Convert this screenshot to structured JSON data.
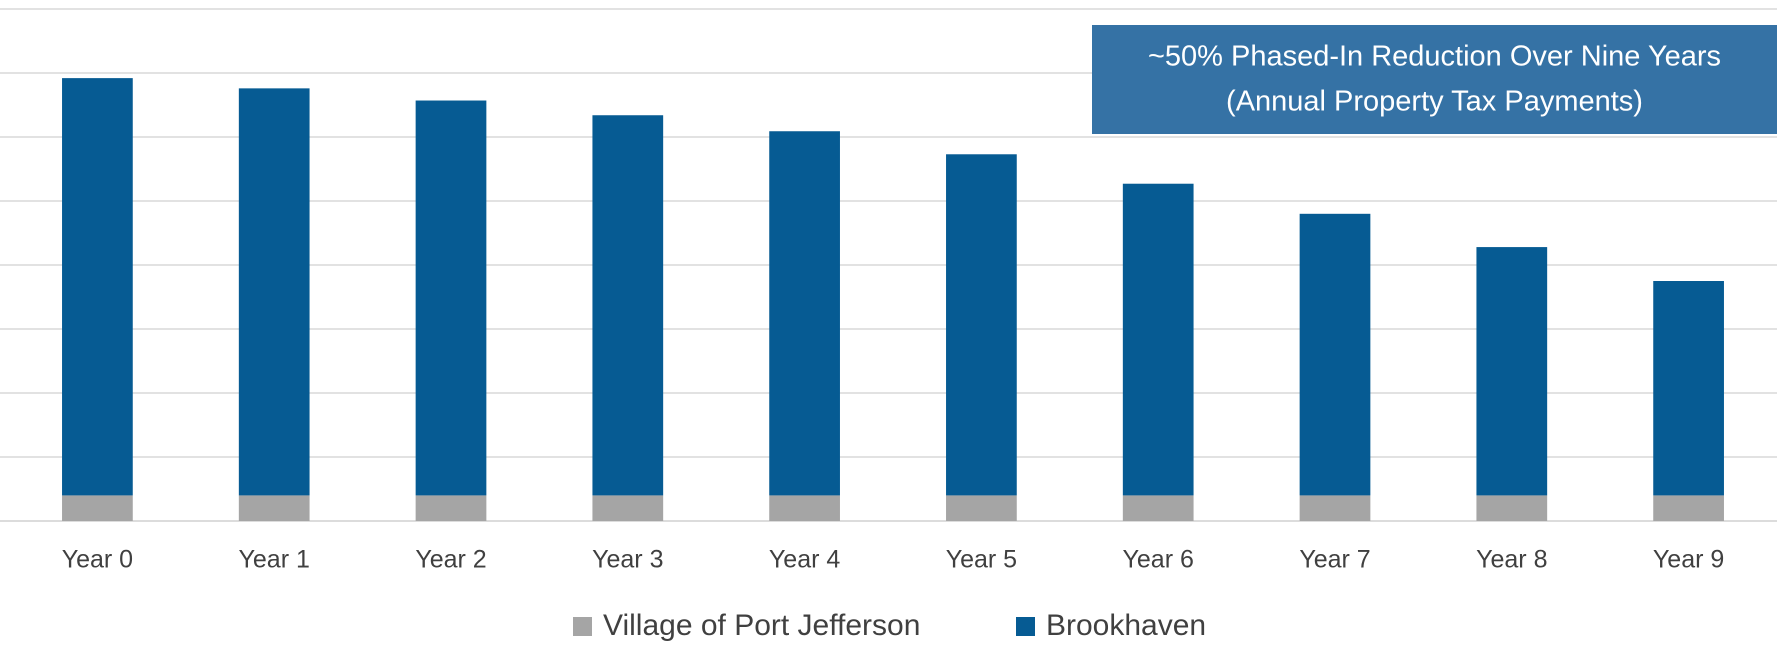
{
  "chart_data": {
    "type": "stacked_bar",
    "annotation": [
      "~50% Phased-In Reduction Over Nine Years",
      "(Annual Property Tax Payments)"
    ],
    "categories": [
      "Year 0",
      "Year 1",
      "Year 2",
      "Year 3",
      "Year 4",
      "Year 5",
      "Year 6",
      "Year 7",
      "Year 8",
      "Year 9"
    ],
    "series": [
      {
        "name": "Village of Port Jefferson",
        "color": "#a5a5a5",
        "values": [
          0.4,
          0.4,
          0.4,
          0.4,
          0.4,
          0.4,
          0.4,
          0.4,
          0.4,
          0.4
        ]
      },
      {
        "name": "Brookhaven",
        "color": "#065b93",
        "values": [
          6.52,
          6.36,
          6.17,
          5.94,
          5.69,
          5.33,
          4.87,
          4.4,
          3.88,
          3.35
        ]
      }
    ],
    "ylim": [
      0,
      8
    ],
    "yticks": [
      0,
      1,
      2,
      3,
      4,
      5,
      6,
      7,
      8
    ],
    "tick_labels": false,
    "grid": true,
    "legend": "bottom",
    "annotation_color": "#3572a5"
  }
}
